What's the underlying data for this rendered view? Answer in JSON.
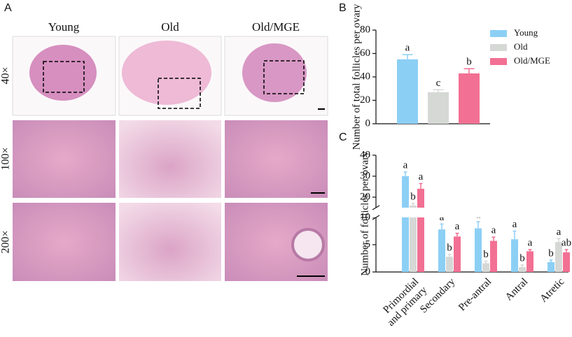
{
  "panel_labels": [
    "A",
    "B",
    "C"
  ],
  "histology": {
    "columns": [
      "Young",
      "Old",
      "Old/MGE"
    ],
    "rows": [
      "40×",
      "100×",
      "200×"
    ]
  },
  "chart_data": [
    {
      "type": "bar",
      "ylabel": "Number of total follicles per ovary",
      "series": [
        {
          "name": "Young",
          "color": "#8ccff5",
          "values": [
            55
          ],
          "errors": [
            4
          ],
          "letters": [
            "a"
          ]
        },
        {
          "name": "Old",
          "color": "#d6d8d6",
          "values": [
            27
          ],
          "errors": [
            2
          ],
          "letters": [
            "c"
          ]
        },
        {
          "name": "Old/MGE",
          "color": "#f27093",
          "values": [
            43
          ],
          "errors": [
            4
          ],
          "letters": [
            "b"
          ]
        }
      ],
      "ylim": [
        0,
        80
      ],
      "yticks": [
        0,
        20,
        40,
        60,
        80
      ],
      "legend": "top-right"
    },
    {
      "type": "bar",
      "ylabel": "Number of follicles per ovary",
      "categories": [
        [
          "Primordial",
          "and primary"
        ],
        [
          "Secondary"
        ],
        [
          "Pre-antral"
        ],
        [
          "Antral"
        ],
        [
          "Atretic"
        ]
      ],
      "series": [
        {
          "name": "Young",
          "color": "#8ccff5",
          "values": [
            30,
            7.8,
            8,
            6,
            1.8
          ],
          "errors": [
            2,
            1,
            1.2,
            1.5,
            0.4
          ],
          "letters": [
            "a",
            "a",
            "a",
            "a",
            "b"
          ]
        },
        {
          "name": "Old",
          "color": "#d6d8d6",
          "values": [
            16,
            2.8,
            1.6,
            0.9,
            5.5
          ],
          "errors": [
            1,
            0.4,
            0.4,
            0.4,
            0.6
          ],
          "letters": [
            "b",
            "b",
            "b",
            "b",
            "a"
          ]
        },
        {
          "name": "Old/MGE",
          "color": "#f27093",
          "values": [
            24,
            6.5,
            5.7,
            3.8,
            3.6
          ],
          "errors": [
            2.5,
            0.6,
            0.7,
            0.3,
            0.5
          ],
          "letters": [
            "a",
            "a",
            "a",
            "a",
            "ab"
          ]
        }
      ],
      "ylim": [
        0,
        40
      ],
      "ybreak": [
        10,
        15
      ],
      "yticks": [
        0,
        5,
        10,
        20,
        30,
        40
      ]
    }
  ]
}
